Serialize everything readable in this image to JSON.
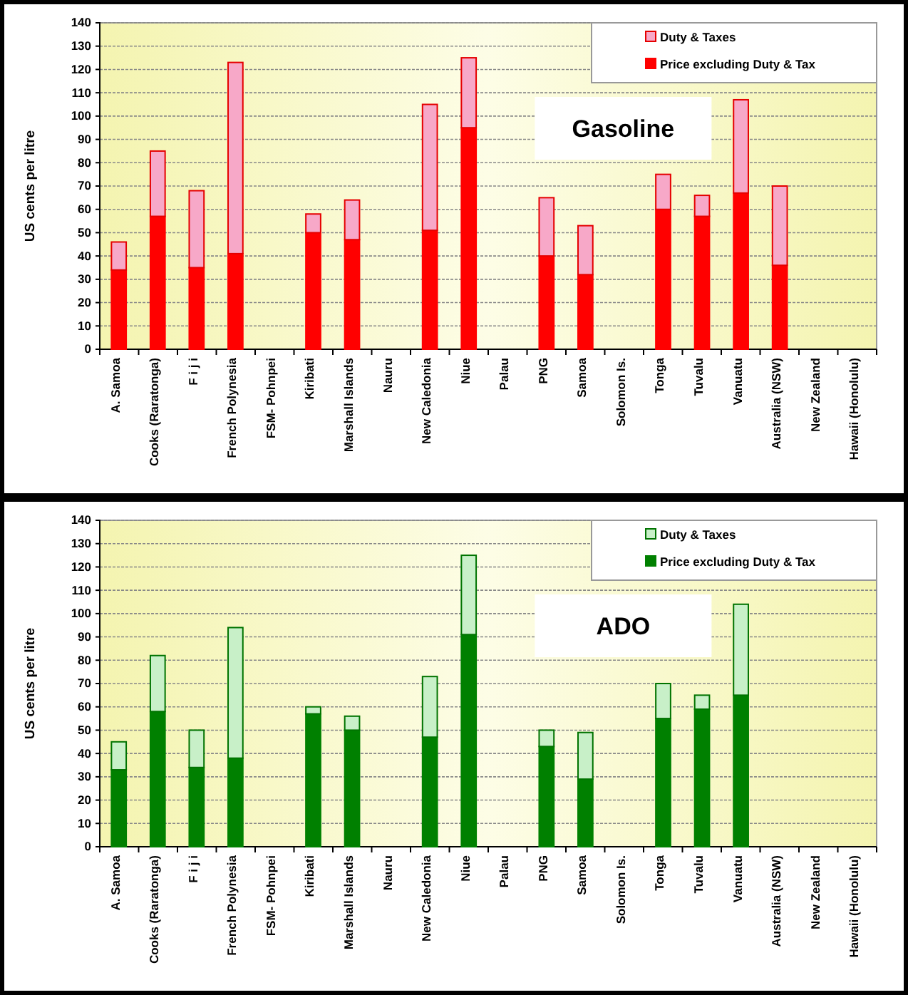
{
  "chart_data": [
    {
      "type": "bar",
      "stacked": true,
      "ylabel": "US cents per litre",
      "annotations": [
        "Gasoline"
      ],
      "categories": [
        "A. Samoa",
        "Cooks (Raratonga)",
        "F i j i",
        "French Polynesia",
        "FSM- Pohnpei",
        "Kiribati",
        "Marshall Islands",
        "Nauru",
        "New Caledonia",
        "Niue",
        "Palau",
        "PNG",
        "Samoa",
        "Solomon Is.",
        "Tonga",
        "Tuvalu",
        "Vanuatu",
        "Australia (NSW)",
        "New Zealand",
        "Hawaii (Honolulu)"
      ],
      "series": [
        {
          "name": "Price excluding Duty & Tax",
          "color": "#ff0000",
          "values": [
            34,
            57,
            35,
            41,
            null,
            50,
            47,
            null,
            51,
            95,
            null,
            40,
            32,
            null,
            60,
            57,
            67,
            36,
            null,
            null
          ]
        },
        {
          "name": "Duty & Taxes",
          "color": "#f7a8c8",
          "values": [
            12,
            28,
            33,
            82,
            null,
            8,
            17,
            null,
            54,
            30,
            null,
            25,
            21,
            null,
            15,
            9,
            40,
            34,
            null,
            null
          ]
        }
      ],
      "ylim": [
        0,
        140
      ],
      "yticks": [
        0,
        10,
        20,
        30,
        40,
        50,
        60,
        70,
        80,
        90,
        100,
        110,
        120,
        130,
        140
      ],
      "grid": "y",
      "legend": "top right"
    },
    {
      "type": "bar",
      "stacked": true,
      "ylabel": "US cents per litre",
      "annotations": [
        "ADO"
      ],
      "categories": [
        "A. Samoa",
        "Cooks (Raratonga)",
        "F i j i",
        "French Polynesia",
        "FSM- Pohnpei",
        "Kiribati",
        "Marshall Islands",
        "Nauru",
        "New Caledonia",
        "Niue",
        "Palau",
        "PNG",
        "Samoa",
        "Solomon Is.",
        "Tonga",
        "Tuvalu",
        "Vanuatu",
        "Australia (NSW)",
        "New Zealand",
        "Hawaii (Honolulu)"
      ],
      "series": [
        {
          "name": "Price excluding Duty & Tax",
          "color": "#008000",
          "values": [
            33,
            58,
            34,
            38,
            null,
            57,
            50,
            null,
            47,
            91,
            null,
            43,
            29,
            null,
            55,
            59,
            65,
            null,
            null,
            null
          ]
        },
        {
          "name": "Duty & Taxes",
          "color": "#c8f0c8",
          "values": [
            12,
            24,
            16,
            56,
            null,
            3,
            6,
            null,
            26,
            34,
            null,
            7,
            20,
            null,
            15,
            6,
            39,
            null,
            null,
            null
          ]
        }
      ],
      "ylim": [
        0,
        140
      ],
      "yticks": [
        0,
        10,
        20,
        30,
        40,
        50,
        60,
        70,
        80,
        90,
        100,
        110,
        120,
        130,
        140
      ],
      "grid": "y",
      "legend": "top right"
    }
  ]
}
